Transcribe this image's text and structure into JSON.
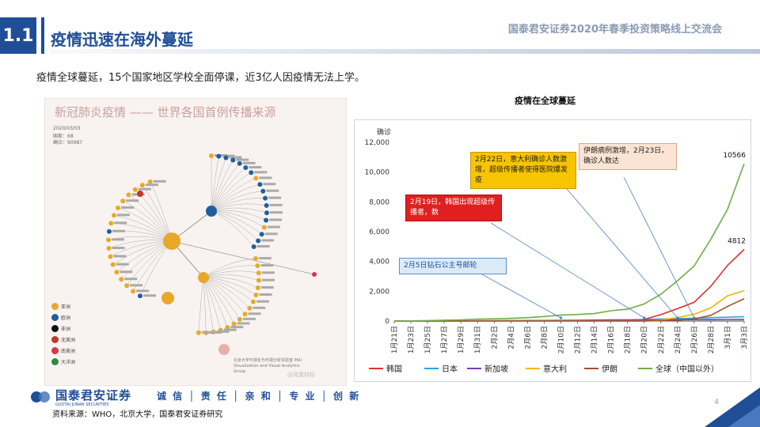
{
  "header": {
    "section_number": "1.1",
    "section_title": "疫情迅速在海外蔓延",
    "deck_title": "国泰君安证券2020年春季投资策略线上交流会"
  },
  "intro_text": "疫情全球蔓延，15个国家地区学校全面停课，近3亿人因疫情无法上学。",
  "infographic": {
    "title": "新冠肺炎疫情 —— 世界各国首例传播来源",
    "meta_date": "2020/03/03",
    "meta_countries": "国家：68",
    "meta_cases": "确诊：90987",
    "legend": [
      {
        "label": "亚洲",
        "color": "#e8a928"
      },
      {
        "label": "欧洲",
        "color": "#1f5f9e"
      },
      {
        "label": "非洲",
        "color": "#111111"
      },
      {
        "label": "北美洲",
        "color": "#c0392b"
      },
      {
        "label": "南美洲",
        "color": "#d9344a"
      },
      {
        "label": "大洋洲",
        "color": "#2e8b3e"
      }
    ],
    "credit": "北京大学可视化与可视分析实验室 PKU Visualization and Visual Analytics Group",
    "watermark": "@凤凰财经"
  },
  "chart_data": {
    "type": "line",
    "title": "疫情在全球蔓延",
    "ylabel": "确诊",
    "ylim": [
      0,
      12000
    ],
    "yticks": [
      "0",
      "2,000",
      "4,000",
      "6,000",
      "8,000",
      "10,000",
      "12,000"
    ],
    "x_labels": [
      "1月21日",
      "1月23日",
      "1月25日",
      "1月27日",
      "1月29日",
      "1月31日",
      "2月2日",
      "2月4日",
      "2月6日",
      "2月8日",
      "2月10日",
      "2月12日",
      "2月14日",
      "2月16日",
      "2月18日",
      "2月20日",
      "2月22日",
      "2月24日",
      "2月26日",
      "2月28日",
      "3月1日",
      "3月3日"
    ],
    "series": [
      {
        "name": "韩国",
        "color": "#e03030",
        "values": [
          1,
          1,
          2,
          4,
          4,
          11,
          15,
          16,
          23,
          24,
          28,
          28,
          28,
          29,
          31,
          104,
          433,
          833,
          1261,
          2337,
          3736,
          4812
        ]
      },
      {
        "name": "日本",
        "color": "#2aa6d8",
        "values": [
          1,
          1,
          3,
          4,
          7,
          15,
          20,
          20,
          25,
          26,
          26,
          28,
          33,
          59,
          65,
          94,
          134,
          160,
          189,
          228,
          256,
          293
        ]
      },
      {
        "name": "新加坡",
        "color": "#7b3fb3",
        "values": [
          0,
          1,
          3,
          5,
          7,
          16,
          18,
          24,
          30,
          40,
          45,
          50,
          67,
          75,
          77,
          85,
          89,
          90,
          93,
          98,
          106,
          110
        ]
      },
      {
        "name": "意大利",
        "color": "#f5b400",
        "values": [
          0,
          0,
          0,
          0,
          0,
          2,
          2,
          2,
          2,
          3,
          3,
          3,
          3,
          3,
          3,
          3,
          79,
          229,
          453,
          888,
          1694,
          2036
        ]
      },
      {
        "name": "伊朗",
        "color": "#a0522d",
        "values": [
          0,
          0,
          0,
          0,
          0,
          0,
          0,
          0,
          0,
          0,
          0,
          0,
          0,
          0,
          0,
          5,
          28,
          61,
          139,
          388,
          978,
          1501
        ]
      },
      {
        "name": "全球（中国以外）",
        "color": "#70ad47",
        "values": [
          4,
          9,
          30,
          55,
          80,
          130,
          150,
          180,
          230,
          300,
          400,
          440,
          500,
          690,
          800,
          1150,
          1800,
          2700,
          3700,
          5500,
          7500,
          10566
        ]
      }
    ],
    "end_labels": [
      {
        "series": "全球（中国以外）",
        "text": "10566"
      },
      {
        "series": "韩国",
        "text": "4812"
      }
    ],
    "annotations": [
      {
        "text": "2月5日钻石公主号邮轮",
        "bg": "#dbeaf7",
        "border": "#5a8fc8",
        "color": "#1f4e97",
        "target_index": 10
      },
      {
        "text": "2月19日，韩国出现超级传播者，数",
        "bg": "#e02020",
        "border": "#b01010",
        "color": "#ffffff",
        "target_index": 15
      },
      {
        "text": "2月22日，意大利确诊人数激增，超级传播者使得医院爆发疫",
        "bg": "#f7c400",
        "border": "#c79a00",
        "color": "#222222",
        "target_index": 17
      },
      {
        "text": "伊朗病例激增，2月23日，确诊人数达",
        "bg": "#fbe4d3",
        "border": "#d8a987",
        "color": "#222222",
        "target_index": 18
      }
    ]
  },
  "footer": {
    "brand_cn": "国泰君安证券",
    "brand_en": "GUOTAI JUNAN SECURITIES",
    "motto": "诚 信 │ 责 任 │ 亲 和 │ 专 业 │ 创 新",
    "source": "资料来源：WHO，北京大学，国泰君安证券研究",
    "page": "4"
  }
}
